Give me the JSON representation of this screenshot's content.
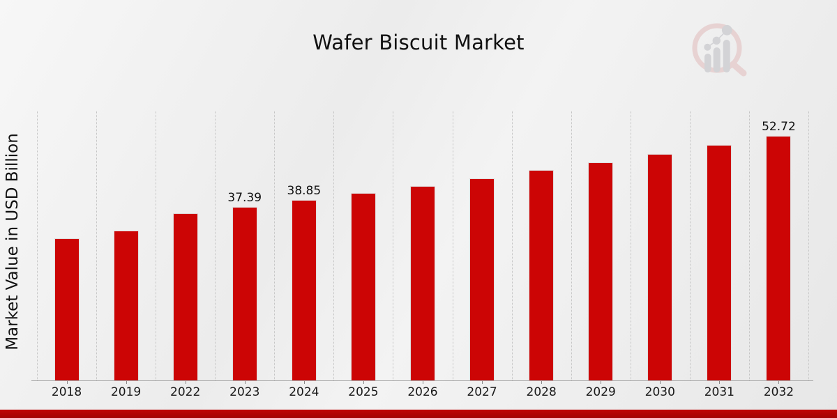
{
  "title": "Wafer Biscuit Market",
  "ylabel": "Market Value in USD Billion",
  "colors": {
    "bar": "#cc0505",
    "banner_top": "#bf0606",
    "banner_bottom": "#a30303",
    "grid": "#c3c3c3",
    "axis": "#aaaaaa",
    "text": "#111111"
  },
  "logo": {
    "name": "magnifier-chart-logo",
    "ring": "#e7d2d2",
    "bars": "#d3d3d6"
  },
  "chart_data": {
    "type": "bar",
    "title": "Wafer Biscuit Market",
    "xlabel": "",
    "ylabel": "Market Value in USD Billion",
    "categories": [
      "2018",
      "2019",
      "2022",
      "2023",
      "2024",
      "2025",
      "2026",
      "2027",
      "2028",
      "2029",
      "2030",
      "2031",
      "2032"
    ],
    "values": [
      30.6,
      32.3,
      36.0,
      37.39,
      38.85,
      40.4,
      41.9,
      43.6,
      45.3,
      47.0,
      48.8,
      50.7,
      52.72
    ],
    "data_labels": [
      "",
      "",
      "",
      "37.39",
      "38.85",
      "",
      "",
      "",
      "",
      "",
      "",
      "",
      "52.72"
    ],
    "bar_color": "#cc0505",
    "ylim": [
      0,
      58
    ],
    "grid": "vertical-dotted",
    "legend": "none"
  }
}
